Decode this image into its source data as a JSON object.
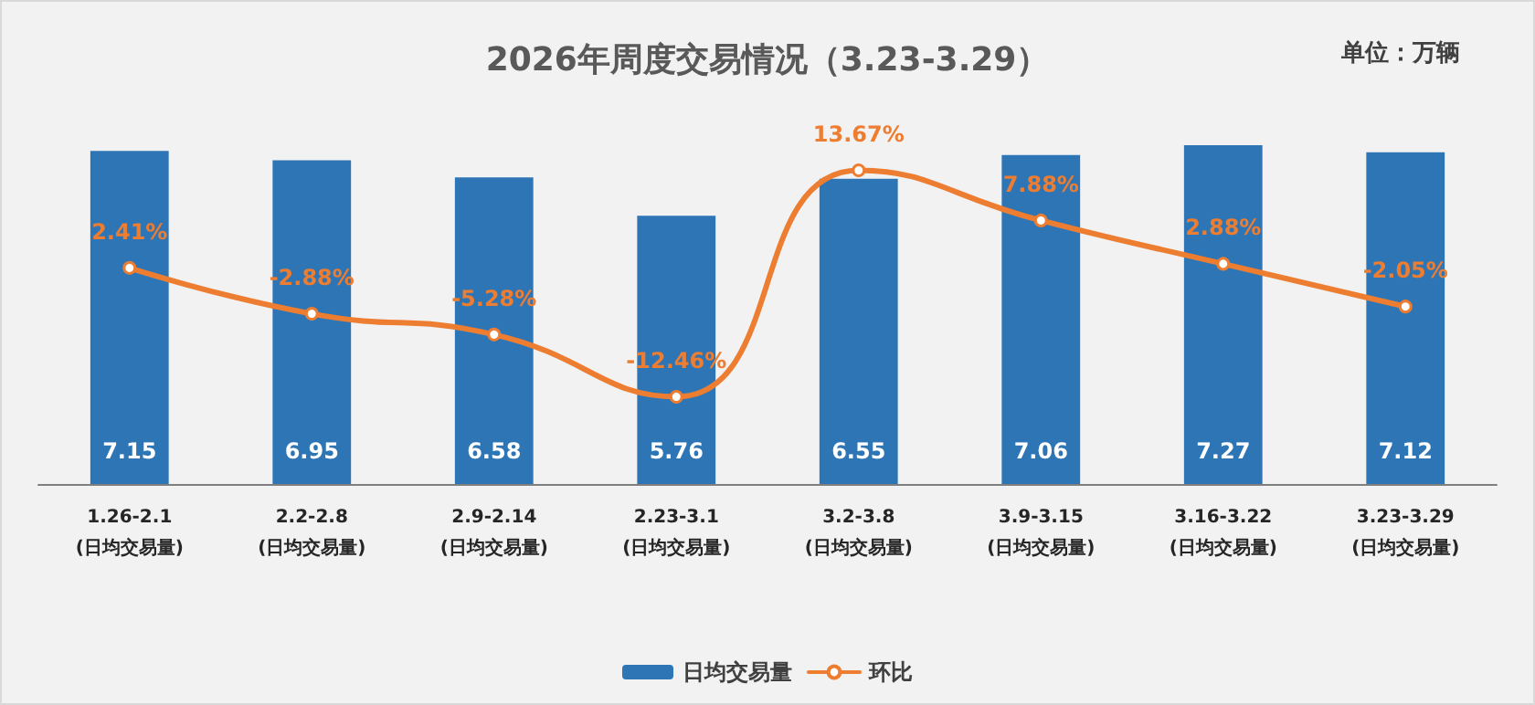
{
  "chart_data": {
    "type": "bar",
    "title": "2026年周度交易情况（3.23-3.29）",
    "annotations": [
      "单位：万辆"
    ],
    "categories": [
      "1.26-2.1\n(日均交易量)",
      "2.2-2.8\n(日均交易量)",
      "2.9-2.14\n(日均交易量)",
      "2.23-3.1\n(日均交易量)",
      "3.2-3.8\n(日均交易量)",
      "3.9-3.15\n(日均交易量)",
      "3.16-3.22\n(日均交易量)",
      "3.23-3.29\n(日均交易量)"
    ],
    "legend": "bottom",
    "data_labels": true,
    "marker": "circle",
    "line_style": "solid",
    "series": [
      {
        "name": "日均交易量",
        "color": "#2e75b6",
        "values": [
          7.15,
          6.95,
          6.58,
          5.76,
          6.55,
          7.06,
          7.27,
          7.12
        ]
      },
      {
        "name": "环比",
        "type": "line",
        "axis": "y2",
        "color": "#ed7d31",
        "values": [
          2.41,
          -2.88,
          -5.28,
          -12.46,
          13.67,
          7.88,
          2.88,
          -2.05
        ],
        "value_labels": [
          "2.41%",
          "-2.88%",
          "-5.28%",
          "-12.46%",
          "13.67%",
          "7.88%",
          "2.88%",
          "-2.05%"
        ]
      }
    ]
  }
}
